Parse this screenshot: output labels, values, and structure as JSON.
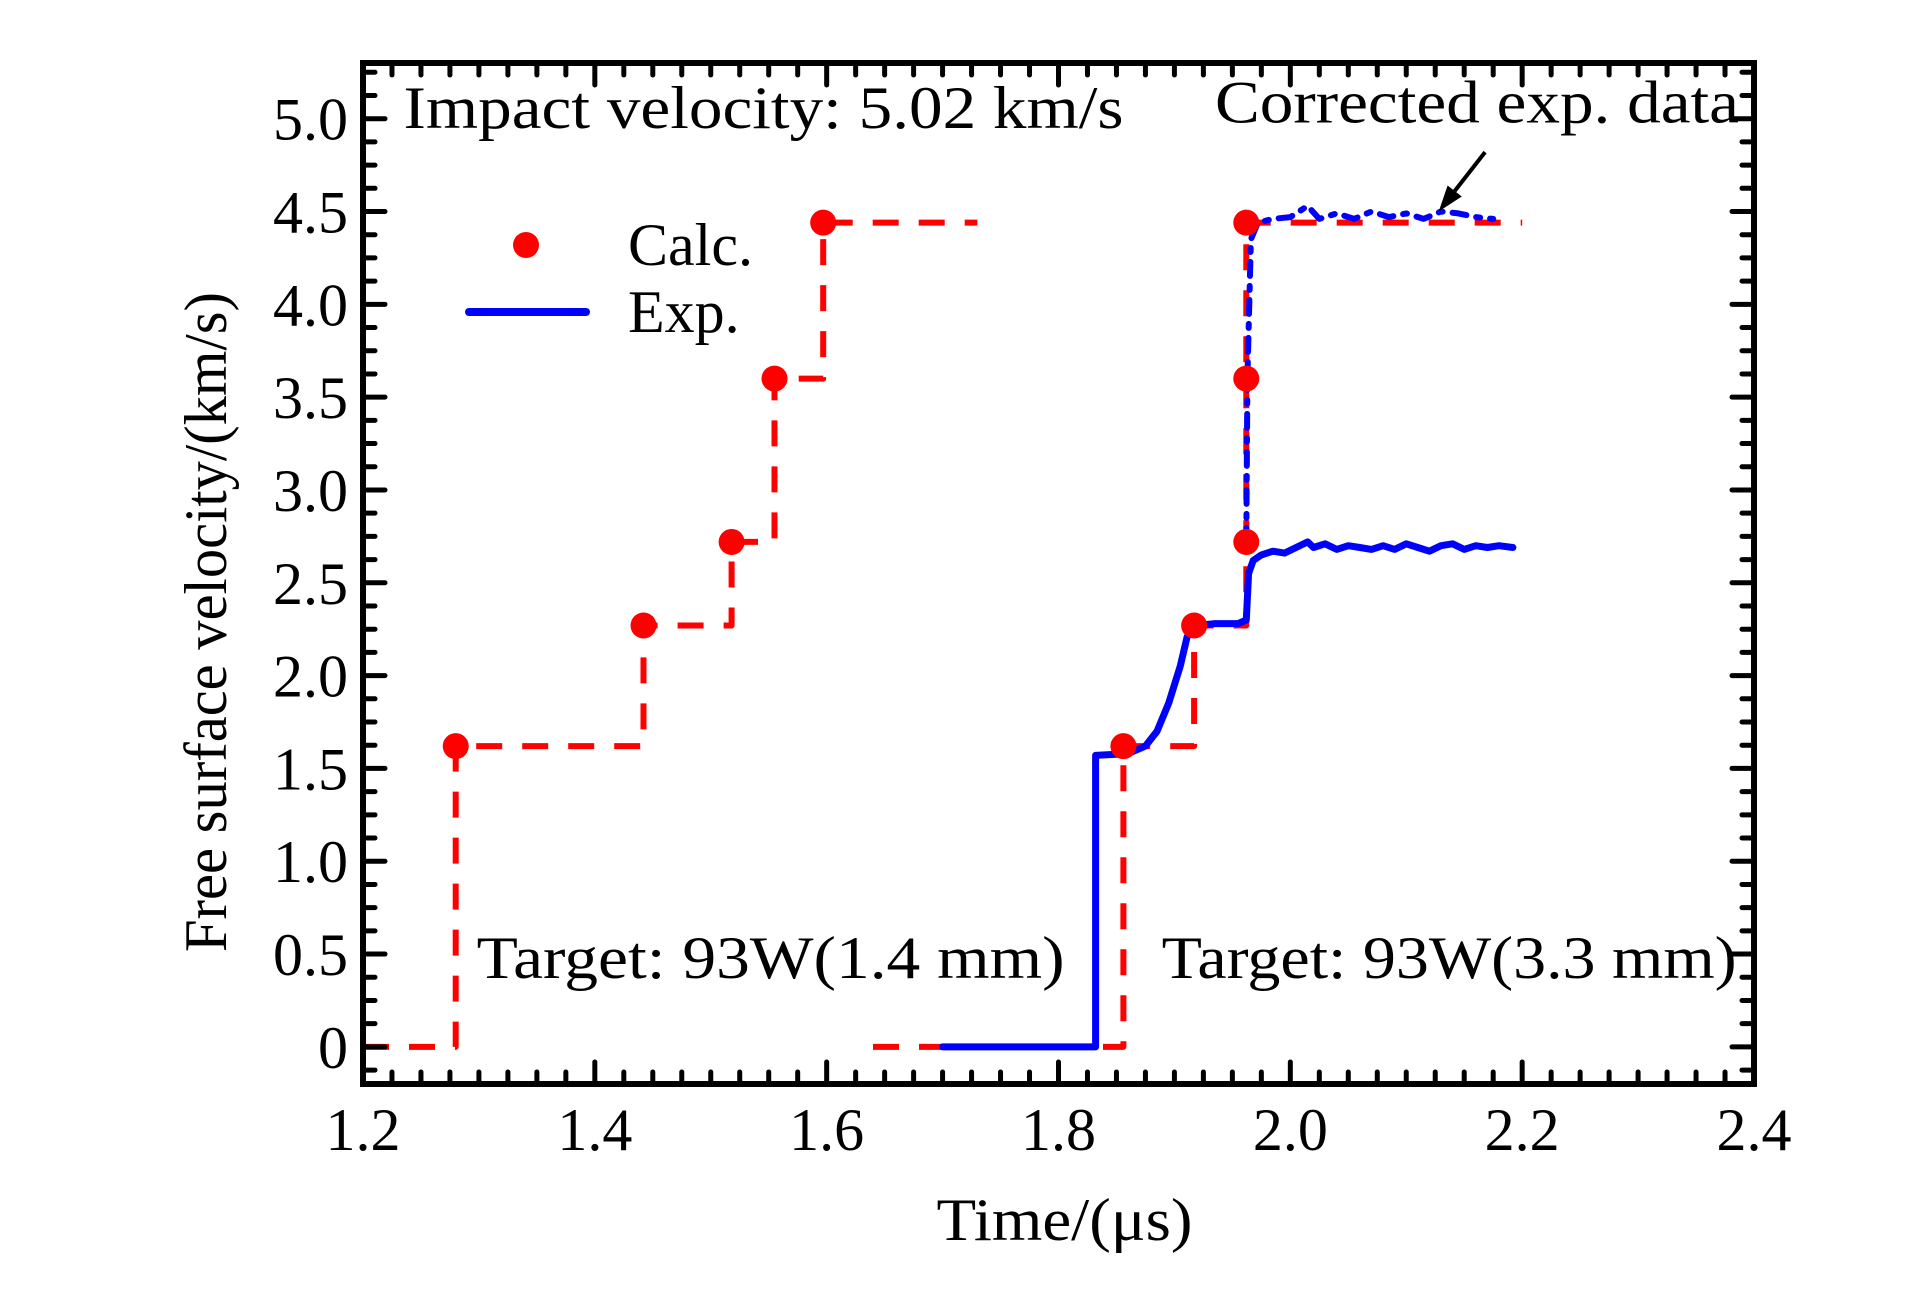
{
  "chart_data": {
    "type": "line",
    "title": "",
    "xlabel": "Time/(μs)",
    "ylabel": "Free surface velocity/(km/s)",
    "xlim": [
      1.2,
      2.4
    ],
    "ylim": [
      -0.2,
      5.3
    ],
    "grid": false,
    "x_ticks": [
      1.2,
      1.4,
      1.6,
      1.8,
      2.0,
      2.2,
      2.4
    ],
    "x_tick_labels": [
      "1.2",
      "1.4",
      "1.6",
      "1.8",
      "2.0",
      "2.2",
      "2.4"
    ],
    "y_ticks": [
      0,
      0.5,
      1.0,
      1.5,
      2.0,
      2.5,
      3.0,
      3.5,
      4.0,
      4.5,
      5.0
    ],
    "y_tick_labels": [
      "0",
      "0.5",
      "1.0",
      "1.5",
      "2.0",
      "2.5",
      "3.0",
      "3.5",
      "4.0",
      "4.5",
      "5.0"
    ],
    "x_minor_step": 0.025,
    "y_minor_step": 0.125,
    "legend": {
      "placement": "top-left",
      "entries": [
        {
          "label": "Calc.",
          "style": "marker",
          "color": "#ff0000"
        },
        {
          "label": "Exp.",
          "style": "line",
          "color": "#0000ff"
        }
      ]
    },
    "annotations": [
      {
        "id": "impact",
        "text": "Impact velocity: 5.02 km/s",
        "x": 1.235,
        "y": 4.95
      },
      {
        "id": "corrected",
        "text": "Corrected exp. data",
        "x": 1.935,
        "y": 4.98,
        "arrow_to": [
          2.128,
          4.5
        ],
        "arrow_from": [
          2.168,
          4.82
        ]
      },
      {
        "id": "target1",
        "text": "Target: 93W(1.4 mm)",
        "x": 1.298,
        "y": 0.37
      },
      {
        "id": "target2",
        "text": "Target: 93W(3.3 mm)",
        "x": 1.889,
        "y": 0.37
      }
    ],
    "series": [
      {
        "name": "Calc. (1.4 mm) step curve",
        "kind": "dashed-step",
        "color": "#ff0000",
        "x": [
          1.2,
          1.28,
          1.28,
          1.442,
          1.442,
          1.518,
          1.518,
          1.555,
          1.555,
          1.597,
          1.597,
          1.73
        ],
        "y": [
          0,
          0,
          1.62,
          1.62,
          2.27,
          2.27,
          2.72,
          2.72,
          3.6,
          3.6,
          4.44,
          4.44
        ]
      },
      {
        "name": "Calc. (3.3 mm) step curve",
        "kind": "dashed-step",
        "color": "#ff0000",
        "x": [
          1.64,
          1.856,
          1.856,
          1.917,
          1.917,
          1.962,
          1.962,
          2.2
        ],
        "y": [
          0,
          0,
          1.62,
          1.62,
          2.27,
          2.27,
          4.44,
          4.44
        ]
      },
      {
        "name": "Calc.",
        "kind": "markers",
        "color": "#ff0000",
        "x": [
          1.28,
          1.442,
          1.518,
          1.555,
          1.597,
          1.856,
          1.917,
          1.962,
          1.962,
          1.962
        ],
        "y": [
          1.62,
          2.27,
          2.72,
          3.6,
          4.44,
          1.62,
          2.27,
          2.72,
          3.6,
          4.44
        ]
      },
      {
        "name": "Exp.",
        "kind": "solid",
        "color": "#0000ff",
        "x": [
          1.7,
          1.832,
          1.832,
          1.86,
          1.875,
          1.885,
          1.895,
          1.905,
          1.911,
          1.92,
          1.935,
          1.955,
          1.962,
          1.964,
          1.968,
          1.975,
          1.985,
          1.995,
          2.005,
          2.015,
          2.02,
          2.03,
          2.04,
          2.05,
          2.06,
          2.07,
          2.08,
          2.09,
          2.1,
          2.11,
          2.12,
          2.13,
          2.14,
          2.15,
          2.16,
          2.17,
          2.18,
          2.192
        ],
        "y": [
          0,
          0,
          1.57,
          1.58,
          1.62,
          1.7,
          1.85,
          2.05,
          2.21,
          2.27,
          2.28,
          2.28,
          2.3,
          2.55,
          2.62,
          2.65,
          2.67,
          2.66,
          2.69,
          2.72,
          2.69,
          2.71,
          2.68,
          2.7,
          2.69,
          2.68,
          2.7,
          2.68,
          2.71,
          2.69,
          2.67,
          2.7,
          2.71,
          2.68,
          2.7,
          2.69,
          2.7,
          2.69
        ]
      },
      {
        "name": "Corrected exp. data",
        "kind": "dash-dot",
        "color": "#0000ff",
        "x": [
          1.962,
          1.963,
          1.966,
          1.972,
          1.985,
          2.0,
          2.015,
          2.025,
          2.04,
          2.055,
          2.07,
          2.085,
          2.1,
          2.115,
          2.13,
          2.145,
          2.16,
          2.175
        ],
        "y": [
          2.72,
          3.6,
          4.35,
          4.44,
          4.46,
          4.47,
          4.53,
          4.46,
          4.49,
          4.46,
          4.5,
          4.47,
          4.49,
          4.46,
          4.5,
          4.49,
          4.47,
          4.46
        ]
      }
    ]
  }
}
